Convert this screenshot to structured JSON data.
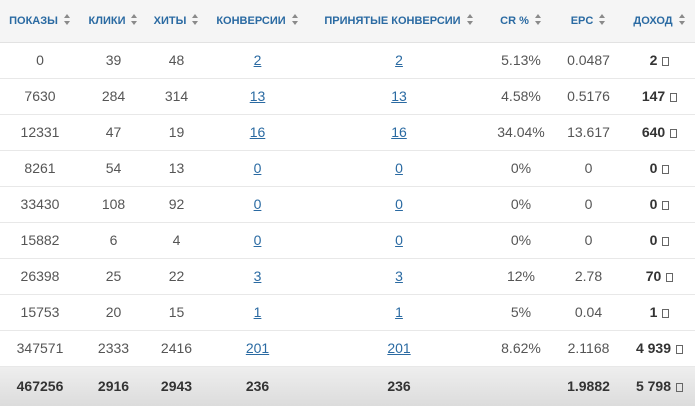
{
  "columns": [
    "ПОКАЗЫ",
    "КЛИКИ",
    "ХИТЫ",
    "КОНВЕРСИИ",
    "ПРИНЯТЫЕ КОНВЕРСИИ",
    "CR %",
    "EPC",
    "ДОХОД"
  ],
  "rows": [
    {
      "impressions": "0",
      "clicks": "39",
      "hits": "48",
      "conversions": "2",
      "accepted": "2",
      "cr": "5.13%",
      "epc": "0.0487",
      "income": "2"
    },
    {
      "impressions": "7630",
      "clicks": "284",
      "hits": "314",
      "conversions": "13",
      "accepted": "13",
      "cr": "4.58%",
      "epc": "0.5176",
      "income": "147"
    },
    {
      "impressions": "12331",
      "clicks": "47",
      "hits": "19",
      "conversions": "16",
      "accepted": "16",
      "cr": "34.04%",
      "epc": "13.617",
      "income": "640"
    },
    {
      "impressions": "8261",
      "clicks": "54",
      "hits": "13",
      "conversions": "0",
      "accepted": "0",
      "cr": "0%",
      "epc": "0",
      "income": "0"
    },
    {
      "impressions": "33430",
      "clicks": "108",
      "hits": "92",
      "conversions": "0",
      "accepted": "0",
      "cr": "0%",
      "epc": "0",
      "income": "0"
    },
    {
      "impressions": "15882",
      "clicks": "6",
      "hits": "4",
      "conversions": "0",
      "accepted": "0",
      "cr": "0%",
      "epc": "0",
      "income": "0"
    },
    {
      "impressions": "26398",
      "clicks": "25",
      "hits": "22",
      "conversions": "3",
      "accepted": "3",
      "cr": "12%",
      "epc": "2.78",
      "income": "70"
    },
    {
      "impressions": "15753",
      "clicks": "20",
      "hits": "15",
      "conversions": "1",
      "accepted": "1",
      "cr": "5%",
      "epc": "0.04",
      "income": "1"
    },
    {
      "impressions": "347571",
      "clicks": "2333",
      "hits": "2416",
      "conversions": "201",
      "accepted": "201",
      "cr": "8.62%",
      "epc": "2.1168",
      "income": "4 939"
    }
  ],
  "totals": {
    "impressions": "467256",
    "clicks": "2916",
    "hits": "2943",
    "conversions": "236",
    "accepted": "236",
    "cr": "",
    "epc": "1.9882",
    "income": "5 798"
  },
  "colors": {
    "header_text": "#2a6aa2",
    "link": "#2a6aa2",
    "header_bg": "#f5f5f5",
    "footer_bg": "#e4e4e4"
  },
  "icons": {
    "sort": "sort-arrows-icon",
    "currency": "currency-icon"
  }
}
